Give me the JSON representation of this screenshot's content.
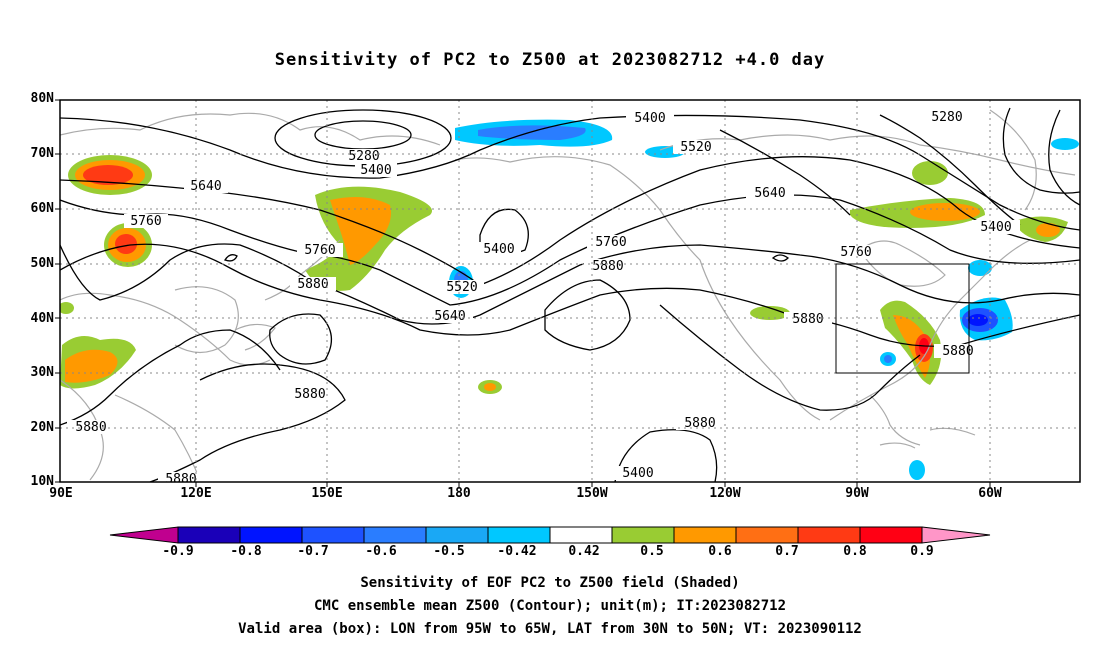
{
  "title": "Sensitivity of PC2 to Z500 at 2023082712 +4.0 day",
  "lat_labels": [
    "80N",
    "70N",
    "60N",
    "50N",
    "40N",
    "30N",
    "20N",
    "10N"
  ],
  "lon_labels": [
    "90E",
    "120E",
    "150E",
    "180",
    "150W",
    "120W",
    "90W",
    "60W"
  ],
  "contour_labels": [
    "5280",
    "5400",
    "5640",
    "5760",
    "5880",
    "5400",
    "5520",
    "5640",
    "5760",
    "5880",
    "5520",
    "5640",
    "5880",
    "5880",
    "5400",
    "5520",
    "5640",
    "5760",
    "5880",
    "5400",
    "5760",
    "5880",
    "5880",
    "5280",
    "5400",
    "5880"
  ],
  "colorbar": {
    "labels": [
      "-0.9",
      "-0.8",
      "-0.7",
      "-0.6",
      "-0.5",
      "-0.42",
      "0.42",
      "0.5",
      "0.6",
      "0.7",
      "0.8",
      "0.9"
    ],
    "colors": [
      "#c0008f",
      "#1a00b8",
      "#0014ff",
      "#1e52ff",
      "#2a7dff",
      "#1aa8f5",
      "#00c8ff",
      "#ffffff",
      "#99cc33",
      "#ff9900",
      "#ff6f14",
      "#ff3a14",
      "#ff0014",
      "#ff96c8"
    ]
  },
  "captions": {
    "line1": "Sensitivity of EOF PC2 to Z500 field (Shaded)",
    "line2": "CMC ensemble mean Z500 (Contour); unit(m); IT:2023082712",
    "line3": "Valid area (box): LON from 95W to 65W, LAT from 30N to 50N; VT: 2023090112"
  }
}
